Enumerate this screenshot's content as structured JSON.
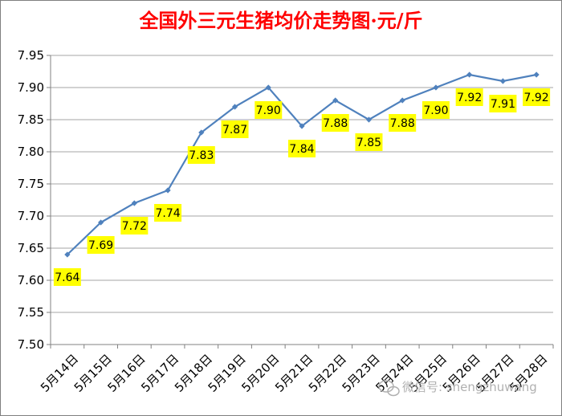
{
  "chart_data": {
    "type": "line",
    "title": "全国外三元生猪均价走势图·元/斤",
    "categories": [
      "5月14日",
      "5月15日",
      "5月16日",
      "5月17日",
      "5月18日",
      "5月19日",
      "5月20日",
      "5月21日",
      "5月22日",
      "5月23日",
      "5月24日",
      "5月25日",
      "5月26日",
      "5月27日",
      "5月28日"
    ],
    "series": [
      {
        "values": [
          7.64,
          7.69,
          7.72,
          7.74,
          7.83,
          7.87,
          7.9,
          7.84,
          7.88,
          7.85,
          7.88,
          7.9,
          7.92,
          7.91,
          7.92
        ],
        "labels": [
          "7.64",
          "7.69",
          "7.72",
          "7.74",
          "7.83",
          "7.87",
          "7.90",
          "7.84",
          "7.88",
          "7.85",
          "7.88",
          "7.90",
          "7.92",
          "7.91",
          "7.92"
        ],
        "label_position": [
          "below",
          "below",
          "below",
          "below",
          "below",
          "below",
          "below",
          "below",
          "below",
          "below",
          "below",
          "below",
          "below",
          "below",
          "below"
        ]
      }
    ],
    "ylim": [
      7.5,
      7.95
    ],
    "yticks": [
      "7.50",
      "7.55",
      "7.60",
      "7.65",
      "7.70",
      "7.75",
      "7.80",
      "7.85",
      "7.90",
      "7.95"
    ],
    "xlabel": "",
    "ylabel": "",
    "grid": "horizontal",
    "legend": "none",
    "colors": {
      "line": "#4f81bd",
      "label_bg": "#ffff00",
      "title": "#ff0000",
      "grid": "#a6a6a6"
    }
  },
  "watermark": {
    "text": "微信号: shengzhuwang"
  }
}
